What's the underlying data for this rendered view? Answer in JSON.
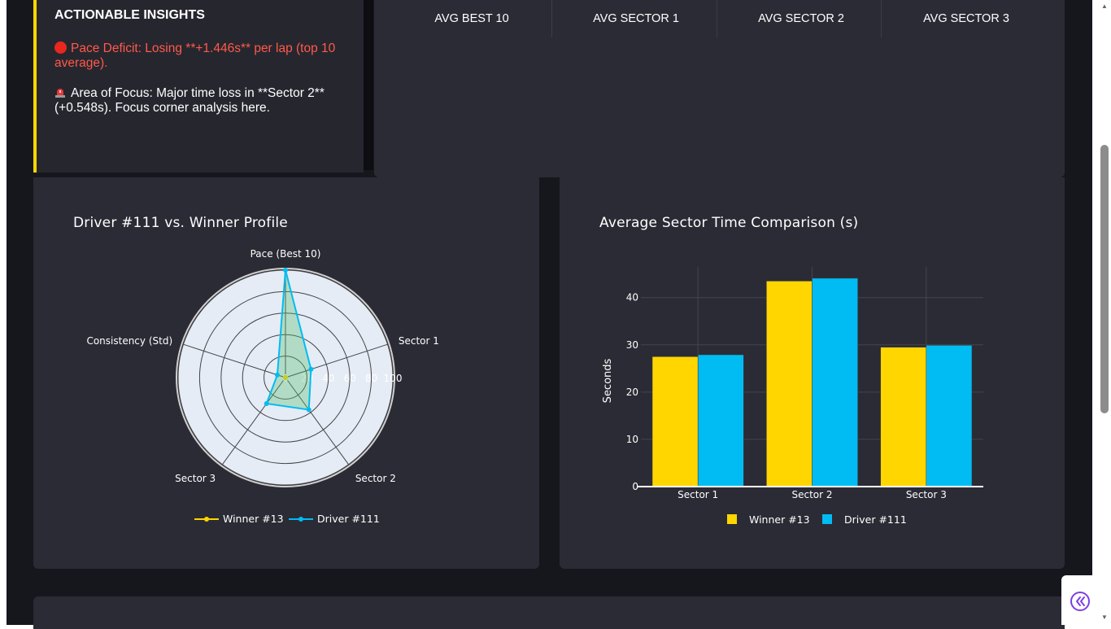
{
  "insights": {
    "title": "ACTIONABLE INSIGHTS",
    "items": [
      {
        "icon": "red-circle-icon",
        "text": "Pace Deficit: Losing **+1.446s** per lap (top 10 average)."
      },
      {
        "icon": "siren-icon",
        "text": "Area of Focus: Major time loss in **Sector 2** (+0.548s). Focus corner analysis here."
      }
    ]
  },
  "metrics": {
    "headers": [
      "AVG BEST 10",
      "AVG SECTOR 1",
      "AVG SECTOR 2",
      "AVG SECTOR 3"
    ]
  },
  "colors": {
    "winner": "#ffd600",
    "driver": "#00bcf2",
    "accent_red": "#ff5a48",
    "card": "#2b2b35",
    "page": "#16161d"
  },
  "chart_data": [
    {
      "type": "radar",
      "title": "Driver #111 vs. Winner Profile",
      "axes": [
        "Pace (Best 10)",
        "Sector 1",
        "Sector 2",
        "Sector 3",
        "Consistency (Std)"
      ],
      "radial_range": [
        0,
        100
      ],
      "radial_ticks": [
        "0",
        "20",
        "40",
        "60",
        "80",
        "100"
      ],
      "series": [
        {
          "name": "Winner #13",
          "values": [
            0,
            0,
            0,
            0,
            0
          ]
        },
        {
          "name": "Driver #111",
          "values": [
            100,
            25,
            37,
            30,
            8
          ]
        }
      ],
      "legend_position": "bottom-center"
    },
    {
      "type": "bar",
      "title": "Average Sector Time Comparison (s)",
      "categories": [
        "Sector 1",
        "Sector 2",
        "Sector 3"
      ],
      "series": [
        {
          "name": "Winner #13",
          "values": [
            27.5,
            43.5,
            29.5
          ]
        },
        {
          "name": "Driver #111",
          "values": [
            27.9,
            44.1,
            29.9
          ]
        }
      ],
      "ylabel": "Seconds",
      "ylim": [
        0,
        46.5
      ],
      "yticks": [
        "0",
        "10",
        "20",
        "30",
        "40"
      ],
      "grid": true,
      "legend_position": "bottom-center"
    }
  ],
  "collapse_button": {
    "icon": "double-chevron-left-icon"
  }
}
